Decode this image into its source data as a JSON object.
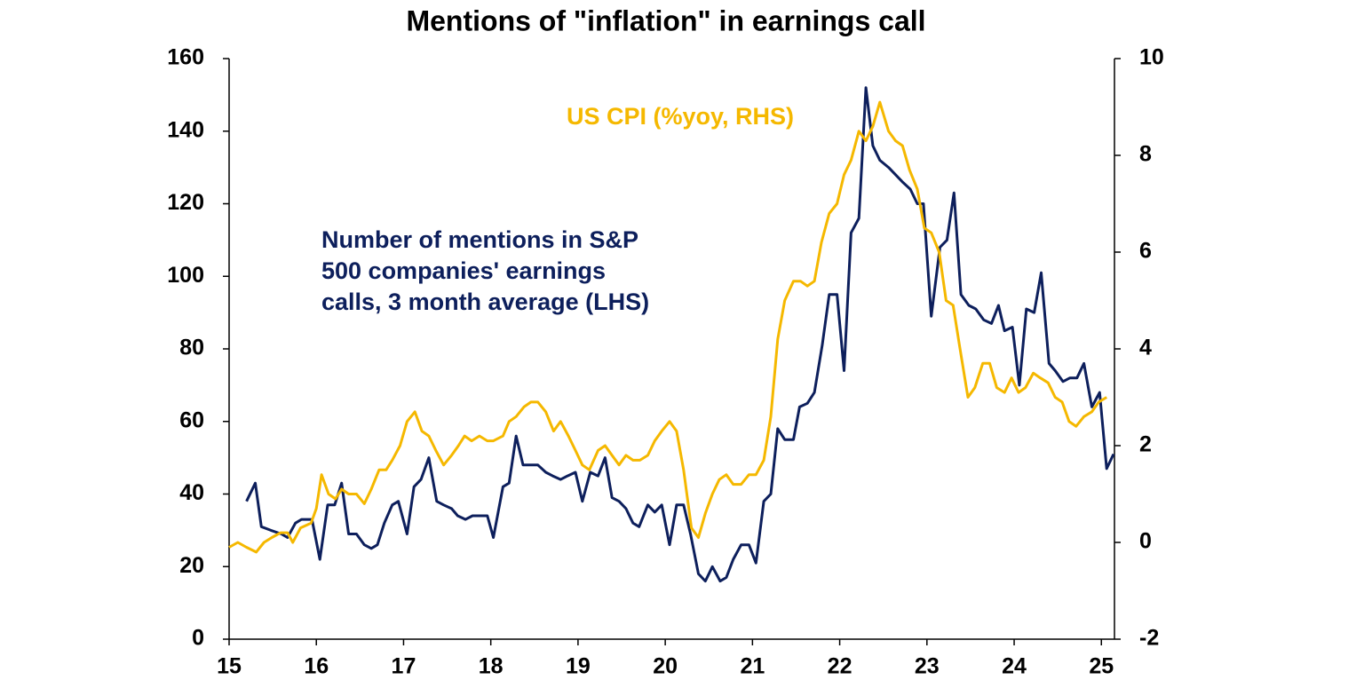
{
  "chart_data": {
    "type": "line",
    "title": "Mentions of \"inflation\" in earnings call",
    "xlim": [
      15,
      25.15
    ],
    "xticks": [
      15,
      16,
      17,
      18,
      19,
      20,
      21,
      22,
      23,
      24,
      25
    ],
    "ylim": [
      0,
      160
    ],
    "yticks": [
      0,
      20,
      40,
      60,
      80,
      100,
      120,
      140,
      160
    ],
    "y2lim": [
      -2,
      10
    ],
    "y2ticks": [
      -2,
      0,
      2,
      4,
      6,
      8,
      10
    ],
    "annotations": [
      {
        "lines": [
          "US CPI (%yoy, RHS)"
        ],
        "color": "#f5b800"
      },
      {
        "lines": [
          "Number of mentions in S&P",
          "500 companies' earnings",
          "calls, 3 month average (LHS)"
        ],
        "color": "#0d1f5c"
      }
    ],
    "series": [
      {
        "color": "#0d1f5c",
        "axis": "y",
        "x": [
          15.2,
          15.3,
          15.37,
          15.48,
          15.6,
          15.67,
          15.76,
          15.83,
          15.95,
          16.04,
          16.13,
          16.21,
          16.29,
          16.37,
          16.46,
          16.55,
          16.63,
          16.7,
          16.78,
          16.87,
          16.94,
          17.04,
          17.12,
          17.2,
          17.29,
          17.38,
          17.46,
          17.55,
          17.62,
          17.71,
          17.79,
          17.87,
          17.96,
          18.03,
          18.14,
          18.21,
          18.29,
          18.37,
          18.46,
          18.54,
          18.63,
          18.71,
          18.8,
          18.88,
          18.97,
          19.05,
          19.14,
          19.23,
          19.31,
          19.39,
          19.47,
          19.55,
          19.63,
          19.7,
          19.8,
          19.88,
          19.96,
          20.05,
          20.13,
          20.21,
          20.29,
          20.38,
          20.46,
          20.54,
          20.63,
          20.7,
          20.78,
          20.87,
          20.96,
          21.04,
          21.13,
          21.21,
          21.29,
          21.37,
          21.47,
          21.54,
          21.63,
          21.71,
          21.8,
          21.88,
          21.97,
          22.05,
          22.13,
          22.22,
          22.3,
          22.38,
          22.46,
          22.56,
          22.64,
          22.72,
          22.81,
          22.89,
          22.96,
          23.05,
          23.15,
          23.23,
          23.31,
          23.39,
          23.48,
          23.56,
          23.65,
          23.74,
          23.82,
          23.89,
          23.98,
          24.06,
          24.14,
          24.23,
          24.31,
          24.4,
          24.47,
          24.56,
          24.64,
          24.72,
          24.8,
          24.89,
          24.98,
          25.06,
          25.14
        ],
        "values": [
          38,
          43,
          31,
          30,
          29,
          28,
          32,
          33,
          33,
          22,
          37,
          37,
          43,
          29,
          29,
          26,
          25,
          26,
          32,
          37,
          38,
          29,
          42,
          44,
          50,
          38,
          37,
          36,
          34,
          33,
          34,
          34,
          34,
          28,
          42,
          43,
          56,
          48,
          48,
          48,
          46,
          45,
          44,
          45,
          46,
          38,
          46,
          45,
          50,
          39,
          38,
          36,
          32,
          31,
          37,
          35,
          37,
          26,
          37,
          37,
          29,
          18,
          16,
          20,
          16,
          17,
          22,
          26,
          26,
          21,
          38,
          40,
          58,
          55,
          55,
          64,
          65,
          68,
          81,
          95,
          95,
          74,
          112,
          116,
          152,
          136,
          132,
          130,
          128,
          126,
          124,
          120,
          120,
          89,
          108,
          110,
          123,
          95,
          92,
          91,
          88,
          87,
          92,
          85,
          86,
          70,
          91,
          90,
          101,
          76,
          74,
          71,
          72,
          72,
          76,
          64,
          68,
          47,
          51
        ]
      },
      {
        "color": "#f5b800",
        "axis": "y2",
        "x": [
          15.0,
          15.1,
          15.2,
          15.31,
          15.4,
          15.49,
          15.59,
          15.67,
          15.73,
          15.82,
          15.94,
          16.0,
          16.06,
          16.14,
          16.22,
          16.29,
          16.37,
          16.46,
          16.55,
          16.63,
          16.72,
          16.8,
          16.87,
          16.96,
          17.04,
          17.13,
          17.21,
          17.29,
          17.37,
          17.46,
          17.55,
          17.63,
          17.7,
          17.78,
          17.87,
          17.96,
          18.03,
          18.14,
          18.21,
          18.29,
          18.38,
          18.46,
          18.54,
          18.63,
          18.72,
          18.8,
          18.89,
          18.97,
          19.05,
          19.13,
          19.23,
          19.31,
          19.39,
          19.47,
          19.55,
          19.63,
          19.71,
          19.8,
          19.88,
          19.96,
          20.05,
          20.13,
          20.21,
          20.3,
          20.38,
          20.46,
          20.54,
          20.62,
          20.7,
          20.78,
          20.87,
          20.96,
          21.04,
          21.13,
          21.21,
          21.29,
          21.37,
          21.47,
          21.55,
          21.63,
          21.71,
          21.79,
          21.88,
          21.97,
          22.05,
          22.13,
          22.22,
          22.3,
          22.38,
          22.46,
          22.56,
          22.64,
          22.72,
          22.8,
          22.89,
          22.97,
          23.05,
          23.14,
          23.22,
          23.3,
          23.38,
          23.47,
          23.55,
          23.64,
          23.72,
          23.8,
          23.89,
          23.97,
          24.05,
          24.13,
          24.22,
          24.3,
          24.39,
          24.47,
          24.55,
          24.63,
          24.71,
          24.8,
          24.89,
          24.97,
          25.06
        ],
        "values": [
          -0.1,
          0.0,
          -0.1,
          -0.2,
          0.0,
          0.1,
          0.2,
          0.2,
          0.0,
          0.3,
          0.4,
          0.7,
          1.4,
          1.0,
          0.9,
          1.1,
          1.0,
          1.0,
          0.8,
          1.1,
          1.5,
          1.5,
          1.7,
          2.0,
          2.5,
          2.7,
          2.3,
          2.2,
          1.9,
          1.6,
          1.8,
          2.0,
          2.2,
          2.1,
          2.2,
          2.1,
          2.1,
          2.2,
          2.5,
          2.6,
          2.8,
          2.9,
          2.9,
          2.7,
          2.3,
          2.5,
          2.2,
          1.9,
          1.6,
          1.5,
          1.9,
          2.0,
          1.8,
          1.6,
          1.8,
          1.7,
          1.7,
          1.8,
          2.1,
          2.3,
          2.5,
          2.3,
          1.5,
          0.3,
          0.1,
          0.6,
          1.0,
          1.3,
          1.4,
          1.2,
          1.2,
          1.4,
          1.4,
          1.7,
          2.6,
          4.2,
          5.0,
          5.4,
          5.4,
          5.3,
          5.4,
          6.2,
          6.8,
          7.0,
          7.6,
          7.9,
          8.5,
          8.3,
          8.6,
          9.1,
          8.5,
          8.3,
          8.2,
          7.7,
          7.3,
          6.5,
          6.4,
          6.0,
          5.0,
          4.9,
          4.0,
          3.0,
          3.2,
          3.7,
          3.7,
          3.2,
          3.1,
          3.4,
          3.1,
          3.2,
          3.5,
          3.4,
          3.3,
          3.0,
          2.9,
          2.5,
          2.4,
          2.6,
          2.7,
          2.9,
          3.0
        ]
      }
    ]
  }
}
